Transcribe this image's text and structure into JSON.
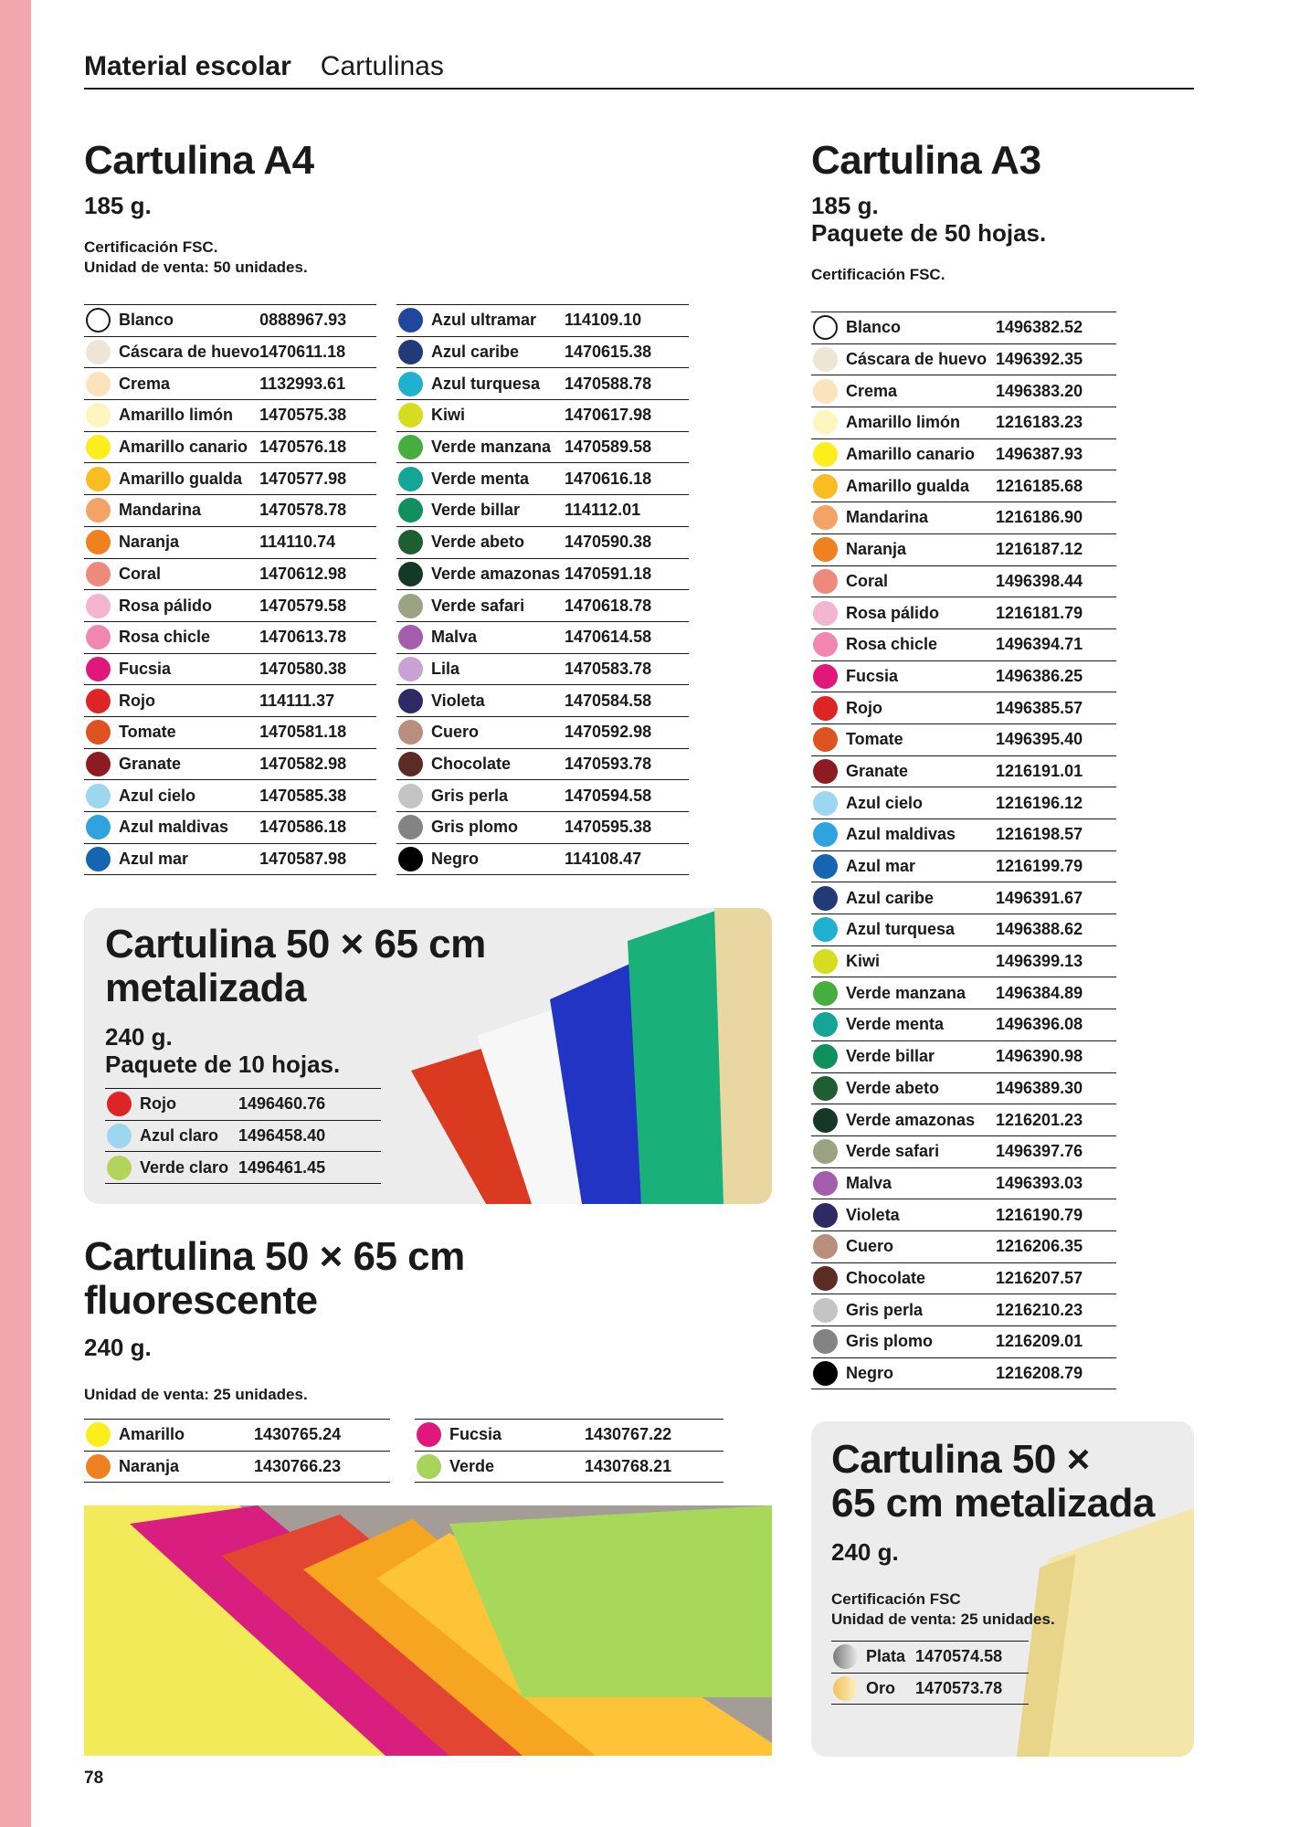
{
  "header": {
    "category": "Material escolar",
    "subcategory": "Cartulinas"
  },
  "page_number": "78",
  "a4": {
    "title": "Cartulina A4",
    "weight": "185 g.",
    "note1": "Certificación FSC.",
    "note2": "Unidad de venta: 50 unidades.",
    "col1": [
      {
        "name": "Blanco",
        "code": "0888967.93",
        "color": "#ffffff"
      },
      {
        "name": "Cáscara de huevo",
        "code": "1470611.18",
        "color": "#ede6d6"
      },
      {
        "name": "Crema",
        "code": "1132993.61",
        "color": "#fbe3bd"
      },
      {
        "name": "Amarillo limón",
        "code": "1470575.38",
        "color": "#fdf6c0"
      },
      {
        "name": "Amarillo canario",
        "code": "1470576.18",
        "color": "#fcee1c"
      },
      {
        "name": "Amarillo gualda",
        "code": "1470577.98",
        "color": "#f9bd22"
      },
      {
        "name": "Mandarina",
        "code": "1470578.78",
        "color": "#f3a366"
      },
      {
        "name": "Naranja",
        "code": "114110.74",
        "color": "#ef8121"
      },
      {
        "name": "Coral",
        "code": "1470612.98",
        "color": "#ee8a7c"
      },
      {
        "name": "Rosa pálido",
        "code": "1470579.58",
        "color": "#f3b5cf"
      },
      {
        "name": "Rosa chicle",
        "code": "1470613.78",
        "color": "#ef87b1"
      },
      {
        "name": "Fucsia",
        "code": "1470580.38",
        "color": "#e0187c"
      },
      {
        "name": "Rojo",
        "code": "114111.37",
        "color": "#df2426"
      },
      {
        "name": "Tomate",
        "code": "1470581.18",
        "color": "#dd5322"
      },
      {
        "name": "Granate",
        "code": "1470582.98",
        "color": "#8c1c22"
      },
      {
        "name": "Azul cielo",
        "code": "1470585.38",
        "color": "#9dd6ef"
      },
      {
        "name": "Azul maldivas",
        "code": "1470586.18",
        "color": "#2ea3dd"
      },
      {
        "name": "Azul mar",
        "code": "1470587.98",
        "color": "#1565b0"
      }
    ],
    "col2": [
      {
        "name": "Azul ultramar",
        "code": "114109.10",
        "color": "#20479b"
      },
      {
        "name": "Azul caribe",
        "code": "1470615.38",
        "color": "#233a78"
      },
      {
        "name": "Azul turquesa",
        "code": "1470588.78",
        "color": "#1fb1cf"
      },
      {
        "name": "Kiwi",
        "code": "1470617.98",
        "color": "#d5de1e"
      },
      {
        "name": "Verde manzana",
        "code": "1470589.58",
        "color": "#45ae3f"
      },
      {
        "name": "Verde menta",
        "code": "1470616.18",
        "color": "#14a597"
      },
      {
        "name": "Verde billar",
        "code": "114112.01",
        "color": "#10905d"
      },
      {
        "name": "Verde abeto",
        "code": "1470590.38",
        "color": "#1e5e32"
      },
      {
        "name": "Verde amazonas",
        "code": "1470591.18",
        "color": "#163826"
      },
      {
        "name": "Verde safari",
        "code": "1470618.78",
        "color": "#9aa483"
      },
      {
        "name": "Malva",
        "code": "1470614.58",
        "color": "#a45dad"
      },
      {
        "name": "Lila",
        "code": "1470583.78",
        "color": "#c7a2d2"
      },
      {
        "name": "Violeta",
        "code": "1470584.58",
        "color": "#2e2a63"
      },
      {
        "name": "Cuero",
        "code": "1470592.98",
        "color": "#b88f7d"
      },
      {
        "name": "Chocolate",
        "code": "1470593.78",
        "color": "#5a2c24"
      },
      {
        "name": "Gris perla",
        "code": "1470594.58",
        "color": "#c4c4c4"
      },
      {
        "name": "Gris plomo",
        "code": "1470595.38",
        "color": "#838383"
      },
      {
        "name": "Negro",
        "code": "114108.47",
        "color": "#000000"
      }
    ]
  },
  "a3": {
    "title": "Cartulina A3",
    "weight": "185 g.",
    "pack": "Paquete de 50 hojas.",
    "note1": "Certificación FSC.",
    "items": [
      {
        "name": "Blanco",
        "code": "1496382.52",
        "color": "#ffffff"
      },
      {
        "name": "Cáscara de huevo",
        "code": "1496392.35",
        "color": "#ede6d6"
      },
      {
        "name": "Crema",
        "code": "1496383.20",
        "color": "#fbe3bd"
      },
      {
        "name": "Amarillo limón",
        "code": "1216183.23",
        "color": "#fdf6c0"
      },
      {
        "name": "Amarillo canario",
        "code": "1496387.93",
        "color": "#fcee1c"
      },
      {
        "name": "Amarillo gualda",
        "code": "1216185.68",
        "color": "#f9bd22"
      },
      {
        "name": "Mandarina",
        "code": "1216186.90",
        "color": "#f3a366"
      },
      {
        "name": "Naranja",
        "code": "1216187.12",
        "color": "#ef8121"
      },
      {
        "name": "Coral",
        "code": "1496398.44",
        "color": "#ee8a7c"
      },
      {
        "name": "Rosa pálido",
        "code": "1216181.79",
        "color": "#f3b5cf"
      },
      {
        "name": "Rosa chicle",
        "code": "1496394.71",
        "color": "#ef87b1"
      },
      {
        "name": "Fucsia",
        "code": "1496386.25",
        "color": "#e0187c"
      },
      {
        "name": "Rojo",
        "code": "1496385.57",
        "color": "#df2426"
      },
      {
        "name": "Tomate",
        "code": "1496395.40",
        "color": "#dd5322"
      },
      {
        "name": "Granate",
        "code": "1216191.01",
        "color": "#8c1c22"
      },
      {
        "name": "Azul cielo",
        "code": "1216196.12",
        "color": "#9dd6ef"
      },
      {
        "name": "Azul maldivas",
        "code": "1216198.57",
        "color": "#2ea3dd"
      },
      {
        "name": "Azul mar",
        "code": "1216199.79",
        "color": "#1565b0"
      },
      {
        "name": "Azul caribe",
        "code": "1496391.67",
        "color": "#233a78"
      },
      {
        "name": "Azul turquesa",
        "code": "1496388.62",
        "color": "#1fb1cf"
      },
      {
        "name": "Kiwi",
        "code": "1496399.13",
        "color": "#d5de1e"
      },
      {
        "name": "Verde manzana",
        "code": "1496384.89",
        "color": "#45ae3f"
      },
      {
        "name": "Verde menta",
        "code": "1496396.08",
        "color": "#14a597"
      },
      {
        "name": "Verde billar",
        "code": "1496390.98",
        "color": "#10905d"
      },
      {
        "name": "Verde abeto",
        "code": "1496389.30",
        "color": "#1e5e32"
      },
      {
        "name": "Verde amazonas",
        "code": "1216201.23",
        "color": "#163826"
      },
      {
        "name": "Verde safari",
        "code": "1496397.76",
        "color": "#9aa483"
      },
      {
        "name": "Malva",
        "code": "1496393.03",
        "color": "#a45dad"
      },
      {
        "name": "Violeta",
        "code": "1216190.79",
        "color": "#2e2a63"
      },
      {
        "name": "Cuero",
        "code": "1216206.35",
        "color": "#b88f7d"
      },
      {
        "name": "Chocolate",
        "code": "1216207.57",
        "color": "#5a2c24"
      },
      {
        "name": "Gris perla",
        "code": "1216210.23",
        "color": "#c4c4c4"
      },
      {
        "name": "Gris plomo",
        "code": "1216209.01",
        "color": "#838383"
      },
      {
        "name": "Negro",
        "code": "1216208.79",
        "color": "#000000"
      }
    ]
  },
  "metal": {
    "title_line1": "Cartulina 50 × 65 cm",
    "title_line2": "metalizada",
    "weight": "240 g.",
    "pack": "Paquete de 10 hojas.",
    "items": [
      {
        "name": "Rojo",
        "code": "1496460.76",
        "color": "#df2426"
      },
      {
        "name": "Azul claro",
        "code": "1496458.40",
        "color": "#9dd6ef"
      },
      {
        "name": "Verde claro",
        "code": "1496461.45",
        "color": "#b3d45a"
      }
    ]
  },
  "fluor": {
    "title_line1": "Cartulina 50 × 65 cm",
    "title_line2": "fluorescente",
    "weight": "240 g.",
    "note1": "Unidad de venta: 25 unidades.",
    "col1": [
      {
        "name": "Amarillo",
        "code": "1430765.24",
        "color": "#fcee1c"
      },
      {
        "name": "Naranja",
        "code": "1430766.23",
        "color": "#ef8121"
      }
    ],
    "col2": [
      {
        "name": "Fucsia",
        "code": "1430767.22",
        "color": "#e0187c"
      },
      {
        "name": "Verde",
        "code": "1430768.21",
        "color": "#a8d45a"
      }
    ]
  },
  "metal2": {
    "title_line1": "Cartulina 50 ×",
    "title_line2": "65 cm metalizada",
    "weight": "240 g.",
    "note1": "Certificación FSC",
    "note2": "Unidad de venta: 25 unidades.",
    "items": [
      {
        "name": "Plata",
        "code": "1470574.58",
        "color": "#b8b8b8"
      },
      {
        "name": "Oro",
        "code": "1470573.78",
        "color": "#f4d58e"
      }
    ]
  }
}
